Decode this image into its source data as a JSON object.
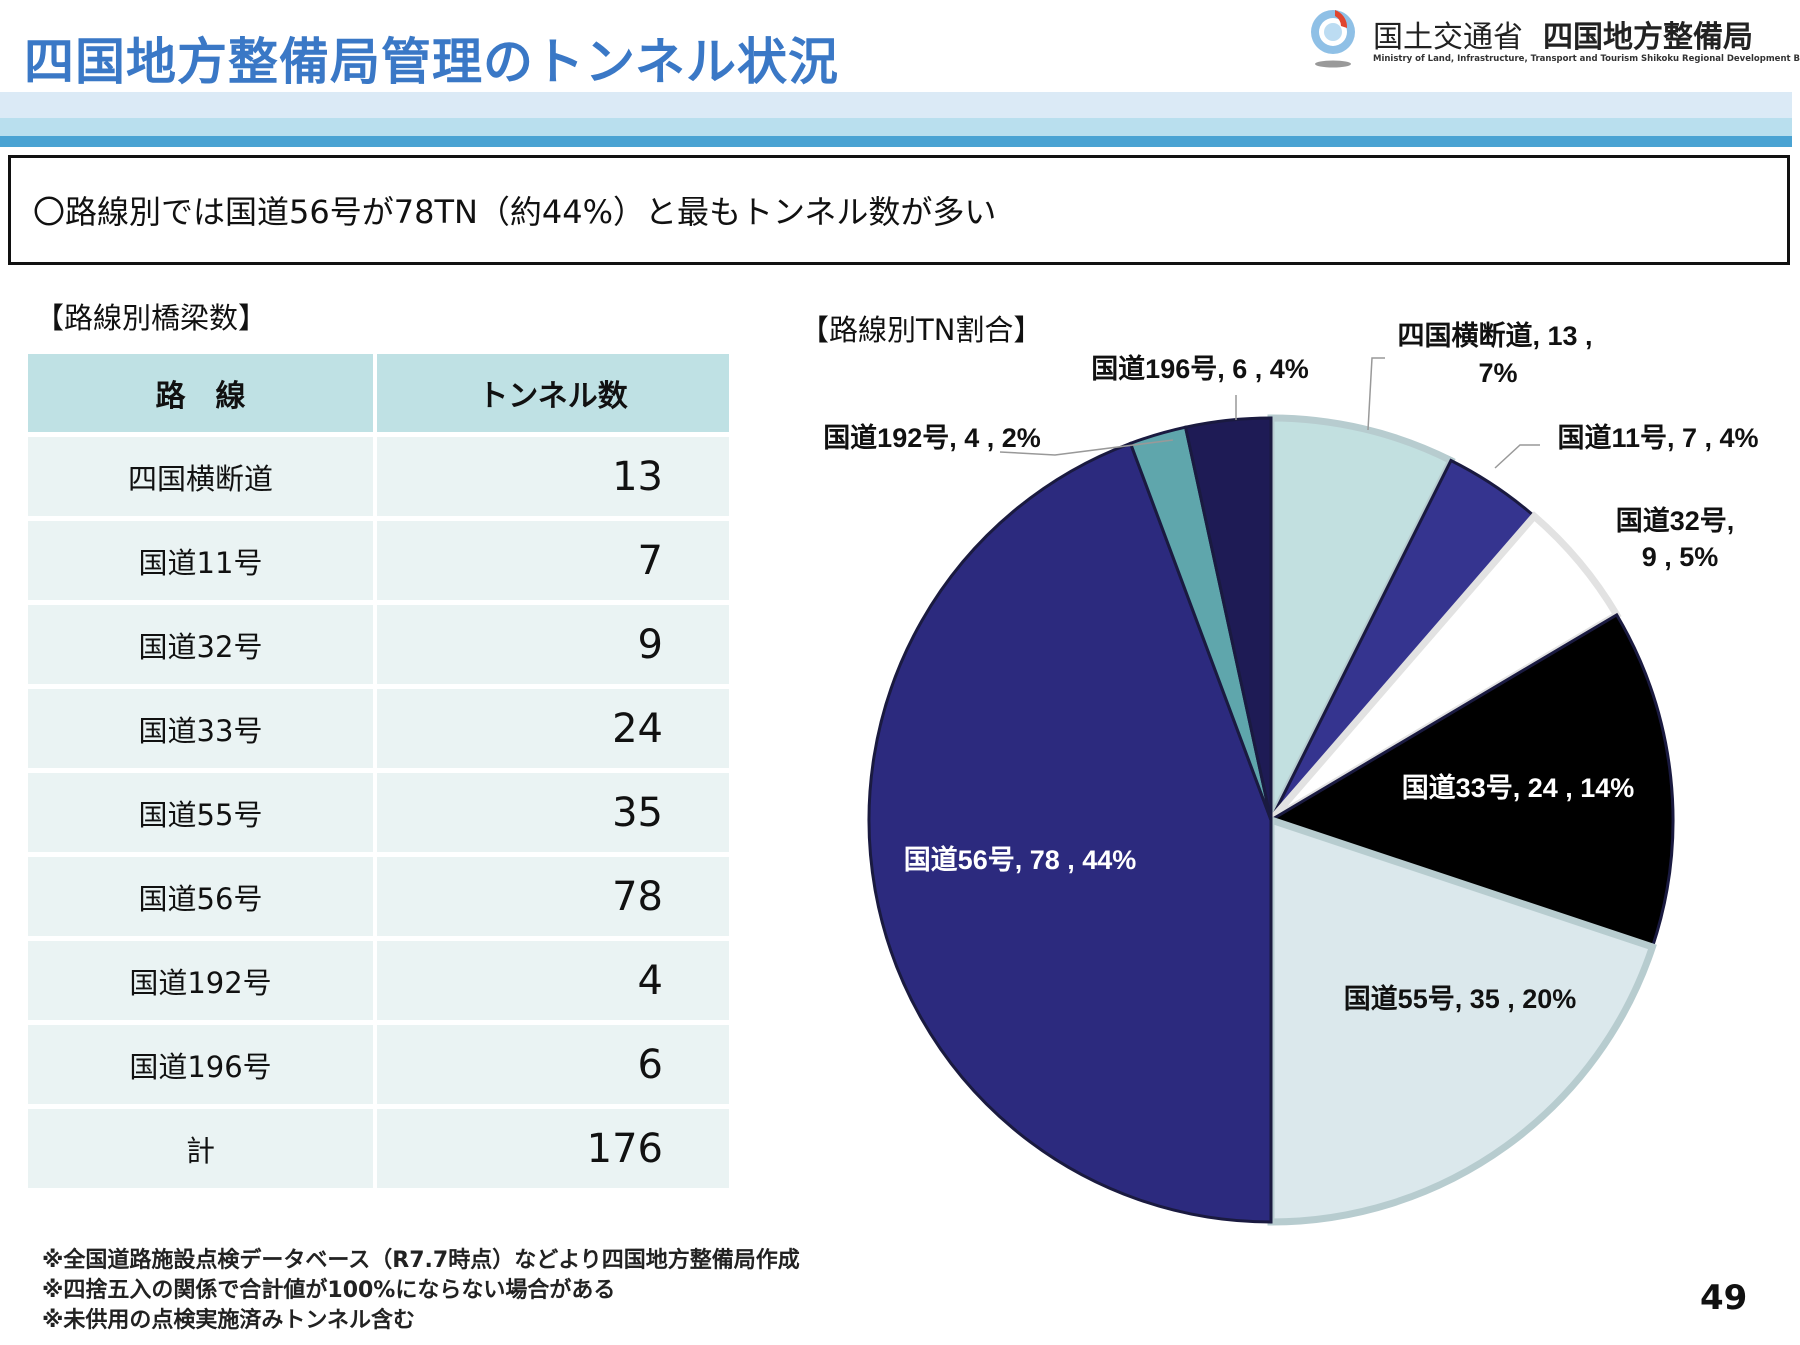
{
  "header": {
    "title": "四国地方整備局管理のトンネル状況",
    "logo_ministry": "国土交通省",
    "logo_bureau": "四国地方整備局",
    "logo_english": "Ministry of Land, Infrastructure, Transport and Tourism Shikoku Regional Development Bureau"
  },
  "summary": "〇路線別では国道56号が78TN（約44%）と最もトンネル数が多い",
  "table": {
    "title": "【路線別橋梁数】",
    "headers": [
      "路　線",
      "トンネル数"
    ],
    "rows": [
      {
        "route": "四国横断道",
        "count": "13"
      },
      {
        "route": "国道11号",
        "count": "7"
      },
      {
        "route": "国道32号",
        "count": "9"
      },
      {
        "route": "国道33号",
        "count": "24"
      },
      {
        "route": "国道55号",
        "count": "35"
      },
      {
        "route": "国道56号",
        "count": "78"
      },
      {
        "route": "国道192号",
        "count": "4"
      },
      {
        "route": "国道196号",
        "count": "6"
      },
      {
        "route": "計",
        "count": "176"
      }
    ]
  },
  "chart_data": {
    "type": "pie",
    "title": "【路線別TN割合】",
    "categories": [
      "四国横断道",
      "国道11号",
      "国道32号",
      "国道33号",
      "国道55号",
      "国道56号",
      "国道192号",
      "国道196号"
    ],
    "values": [
      13,
      7,
      9,
      24,
      35,
      78,
      4,
      6
    ],
    "percents": [
      "7%",
      "4%",
      "5%",
      "14%",
      "20%",
      "44%",
      "2%",
      "4%"
    ],
    "labels": [
      [
        "四国横断道, 13 ,",
        "7%"
      ],
      [
        "国道11号, 7 , 4%"
      ],
      [
        "国道32号,",
        "9 , 5%"
      ],
      [
        "国道33号, 24 , 14%"
      ],
      [
        "国道55号, 35 , 20%"
      ],
      [
        "国道56号, 78 , 44%"
      ],
      [
        "国道192号, 4 , 2%"
      ],
      [
        "国道196号, 6 , 4%"
      ]
    ],
    "colors": [
      "#c2e0e0",
      "#35348f",
      "#ffffff",
      "#000000",
      "#dbe8ec",
      "#2c2a7e",
      "#5fa6ac",
      "#1e1b55"
    ],
    "label_colors": [
      "#111",
      "#111",
      "#111",
      "#fff",
      "#111",
      "#fff",
      "#111",
      "#111"
    ]
  },
  "footnotes": [
    "※全国道路施設点検データベース（R7.7時点）などより四国地方整備局作成",
    "※四捨五入の関係で合計値が100%にならない場合がある",
    "※未供用の点検実施済みトンネル含む"
  ],
  "page_number": "49"
}
